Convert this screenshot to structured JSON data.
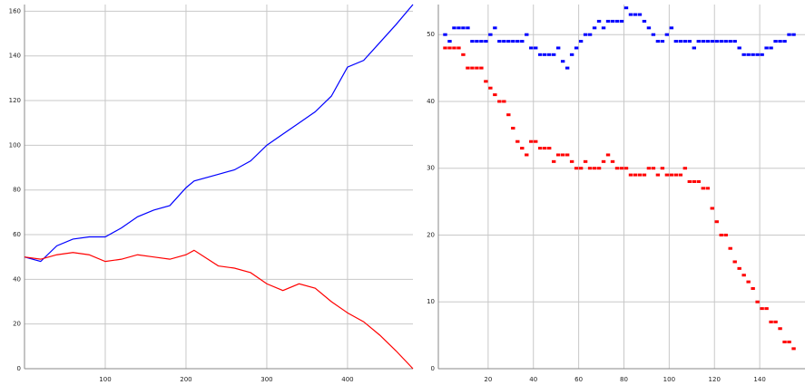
{
  "chart_data": [
    {
      "type": "line",
      "x": [
        0,
        20,
        40,
        60,
        80,
        100,
        120,
        140,
        160,
        180,
        200,
        210,
        240,
        260,
        280,
        300,
        320,
        340,
        360,
        380,
        400,
        420,
        440,
        460,
        481
      ],
      "series": [
        {
          "color": "#0000ff",
          "values": [
            50,
            48,
            55,
            58,
            59,
            59,
            63,
            68,
            71,
            73,
            81,
            84,
            87,
            89,
            93,
            100,
            105,
            110,
            115,
            122,
            135,
            138,
            146,
            154,
            163
          ]
        },
        {
          "color": "#ff0000",
          "values": [
            50,
            49,
            51,
            52,
            51,
            48,
            49,
            51,
            50,
            49,
            51,
            53,
            46,
            45,
            43,
            38,
            35,
            38,
            36,
            30,
            25,
            21,
            15,
            8,
            0
          ]
        }
      ],
      "xlim": [
        0,
        481
      ],
      "ylim": [
        0,
        163
      ],
      "xticks": [
        100,
        200,
        300,
        400
      ],
      "yticks": [
        0,
        20,
        40,
        60,
        80,
        100,
        120,
        140,
        160
      ],
      "grid": true
    },
    {
      "type": "scatter",
      "x": [
        1,
        3,
        5,
        7,
        9,
        11,
        13,
        15,
        17,
        19,
        21,
        23,
        25,
        27,
        29,
        31,
        33,
        35,
        37,
        39,
        41,
        43,
        45,
        47,
        49,
        51,
        53,
        55,
        57,
        59,
        61,
        63,
        65,
        67,
        69,
        71,
        73,
        75,
        77,
        79,
        81,
        83,
        85,
        87,
        89,
        91,
        93,
        95,
        97,
        99,
        101,
        103,
        105,
        107,
        109,
        111,
        113,
        115,
        117,
        119,
        121,
        123,
        125,
        127,
        129,
        131,
        133,
        135,
        137,
        139,
        141,
        143,
        145,
        147,
        149,
        151,
        153,
        155
      ],
      "series": [
        {
          "color": "#0000ff",
          "values": [
            50,
            49,
            51,
            51,
            51,
            51,
            49,
            49,
            49,
            49,
            50,
            51,
            49,
            49,
            49,
            49,
            49,
            49,
            50,
            48,
            48,
            47,
            47,
            47,
            47,
            48,
            46,
            45,
            47,
            48,
            49,
            50,
            50,
            51,
            52,
            51,
            52,
            52,
            52,
            52,
            54,
            53,
            53,
            53,
            52,
            51,
            50,
            49,
            49,
            50,
            51,
            49,
            49,
            49,
            49,
            48,
            49,
            49,
            49,
            49,
            49,
            49,
            49,
            49,
            49,
            48,
            47,
            47,
            47,
            47,
            47,
            48,
            48,
            49,
            49,
            49,
            50,
            50
          ]
        },
        {
          "color": "#ff0000",
          "values": [
            48,
            48,
            48,
            48,
            47,
            45,
            45,
            45,
            45,
            43,
            42,
            41,
            40,
            40,
            38,
            36,
            34,
            33,
            32,
            34,
            34,
            33,
            33,
            33,
            31,
            32,
            32,
            32,
            31,
            30,
            30,
            31,
            30,
            30,
            30,
            31,
            32,
            31,
            30,
            30,
            30,
            29,
            29,
            29,
            29,
            30,
            30,
            29,
            30,
            29,
            29,
            29,
            29,
            30,
            28,
            28,
            28,
            27,
            27,
            24,
            22,
            20,
            20,
            18,
            16,
            15,
            14,
            13,
            12,
            10,
            9,
            9,
            7,
            7,
            6,
            4,
            4,
            3
          ]
        }
      ],
      "xlim": [
        -2,
        160
      ],
      "ylim": [
        0,
        54.5
      ],
      "xticks": [
        20,
        40,
        60,
        80,
        100,
        120,
        140
      ],
      "yticks": [
        0,
        10,
        20,
        30,
        40,
        50
      ],
      "grid": true
    }
  ]
}
